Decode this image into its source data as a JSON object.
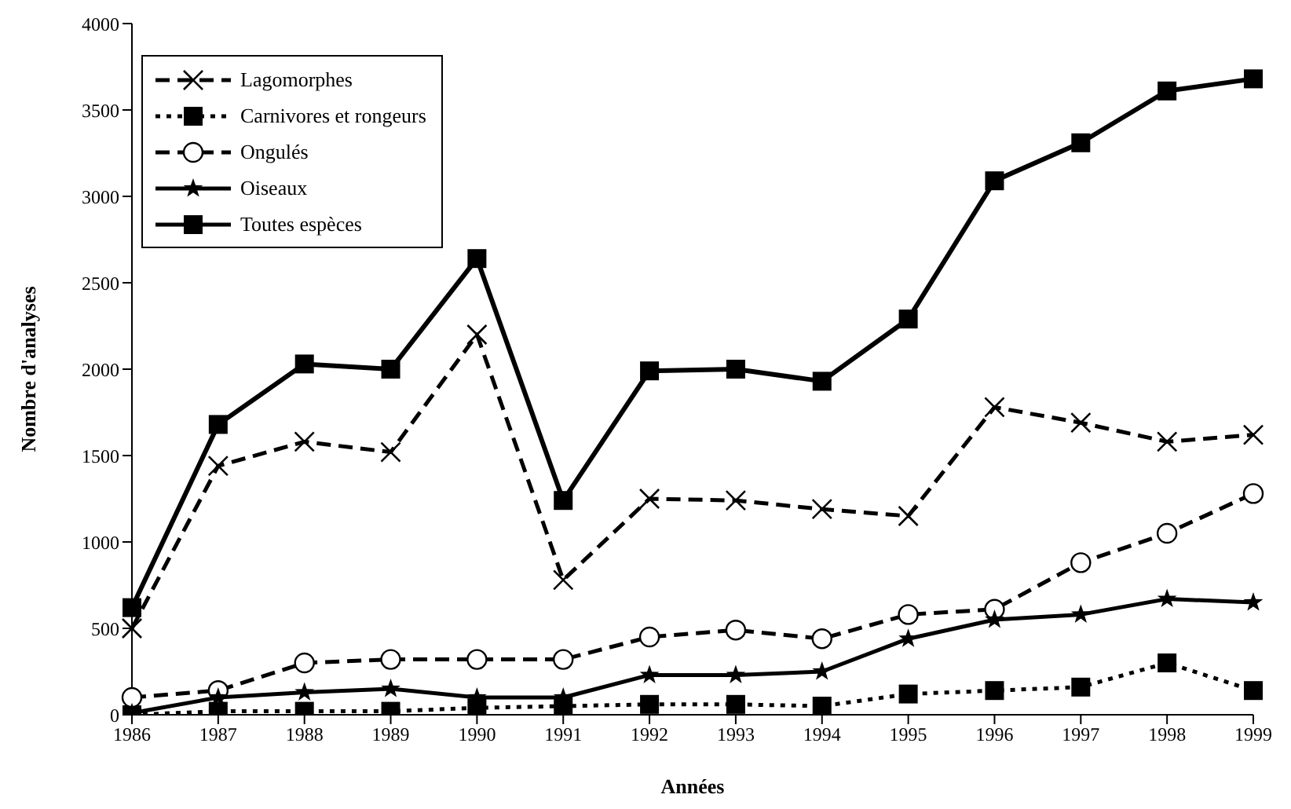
{
  "chart_data": {
    "type": "line",
    "xlabel": "Années",
    "ylabel": "Nombre d'analyses",
    "categories": [
      "1986",
      "1987",
      "1988",
      "1989",
      "1990",
      "1991",
      "1992",
      "1993",
      "1994",
      "1995",
      "1996",
      "1997",
      "1998",
      "1999"
    ],
    "ylim": [
      0,
      4000
    ],
    "yticks": [
      0,
      500,
      1000,
      1500,
      2000,
      2500,
      3000,
      3500,
      4000
    ],
    "grid": false,
    "legend": "top left",
    "series": [
      {
        "name": "Lagomorphes",
        "color": "#000000",
        "marker": "cross",
        "line_style": "dashed",
        "values": [
          500,
          1440,
          1580,
          1520,
          2200,
          780,
          1250,
          1240,
          1190,
          1150,
          1780,
          1690,
          1580,
          1620
        ]
      },
      {
        "name": "Carnivores et rongeurs",
        "color": "#000000",
        "marker": "square",
        "line_style": "dotted",
        "values": [
          0,
          20,
          20,
          20,
          40,
          50,
          60,
          60,
          50,
          120,
          140,
          160,
          300,
          140
        ]
      },
      {
        "name": "Ongulés",
        "color": "#000000",
        "marker": "circle",
        "line_style": "dashed",
        "values": [
          100,
          140,
          300,
          320,
          320,
          320,
          450,
          490,
          440,
          580,
          610,
          880,
          1050,
          1280
        ]
      },
      {
        "name": "Oiseaux",
        "color": "#000000",
        "marker": "star",
        "line_style": "solid",
        "values": [
          10,
          100,
          130,
          150,
          100,
          100,
          230,
          230,
          250,
          440,
          550,
          580,
          670,
          650
        ]
      },
      {
        "name": "Toutes espèces",
        "color": "#000000",
        "marker": "square",
        "line_style": "solid",
        "values": [
          620,
          1680,
          2030,
          2000,
          2640,
          1240,
          1990,
          2000,
          1930,
          2290,
          3090,
          3310,
          3610,
          3680
        ]
      }
    ]
  }
}
